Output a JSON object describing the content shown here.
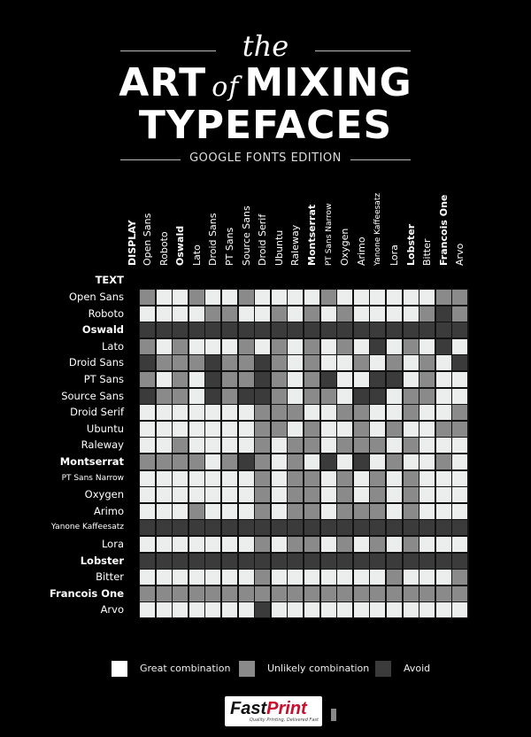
{
  "header": {
    "the": "the",
    "art": "ART",
    "of": "of",
    "mixing": "MIXING",
    "typefaces": "TYPEFACES",
    "edition": "GOOGLE FONTS EDITION"
  },
  "grid": {
    "display_label": "DISPLAY",
    "text_label": "TEXT",
    "columns": [
      "Open Sans",
      "Roboto",
      "Oswald",
      "Lato",
      "Droid Sans",
      "PT Sans",
      "Source Sans",
      "Droid Serif",
      "Ubuntu",
      "Raleway",
      "Montserrat",
      "PT Sans Narrow",
      "Oxygen",
      "Arimo",
      "Yanone Kaffeesatz",
      "Lora",
      "Lobster",
      "Bitter",
      "Francois One",
      "Arvo"
    ],
    "rows": [
      "Open Sans",
      "Roboto",
      "Oswald",
      "Lato",
      "Droid Sans",
      "PT Sans",
      "Source Sans",
      "Droid Serif",
      "Ubuntu",
      "Raleway",
      "Montserrat",
      "PT Sans Narrow",
      "Oxygen",
      "Arimo",
      "Yanone Kaffeesatz",
      "Lora",
      "Lobster",
      "Bitter",
      "Francois One",
      "Arvo"
    ],
    "legend_codes": {
      "G": "Great combination",
      "U": "Unlikely combination",
      "A": "Avoid"
    },
    "colors": {
      "G": "#eceeee",
      "U": "#8a8a8a",
      "A": "#3b3b3b"
    },
    "matrix": [
      "UGGUGGUGGGGUGGGGGGUU",
      "GGGGUUGGUGUGUGGGGUAU",
      "AAAAAAAAAAAAAAAAAAAA",
      "UGUGGGUGUGUGUGAGUGAG",
      "AUUUAUUAUGUGGUGUGUGA",
      "UGUGAUUAUGUAGGAAGUGG",
      "AUUGAUAAUGUUGAAGUUGG",
      "GGGGGGGUUUGGUUGGUGGU",
      "GGGGGGGUUGUGGUGUGGUU",
      "GGUGGGGUGUUGUUUGUGGG",
      "UUUUGUAUGUGAGAGUGGUG",
      "GGGGGGGUGUUGUGUGUGGG",
      "GGGGGGGUGUUGUGUGUGGG",
      "GGGUGGGUGUUGUUUGUGGG",
      "AAAAAAAAAAAAAAAAAAAA",
      "GGGGGGGUGUUGUGUGUGGG",
      "AAAAAAAAAAAAAAAAAAAA",
      "GGGGGGGUGGGGGGGUGGGU",
      "UUUUUUUUUUUUUUUUUUUU",
      "GGGGGGGAGGGGGGGGGGGG"
    ]
  },
  "legend": {
    "great": "Great combination",
    "unlikely": "Unlikely combination",
    "avoid": "Avoid"
  },
  "logo": {
    "name_a": "Fast",
    "name_b": "Print",
    "tagline": "Quality Printing, Delivered Fast"
  }
}
